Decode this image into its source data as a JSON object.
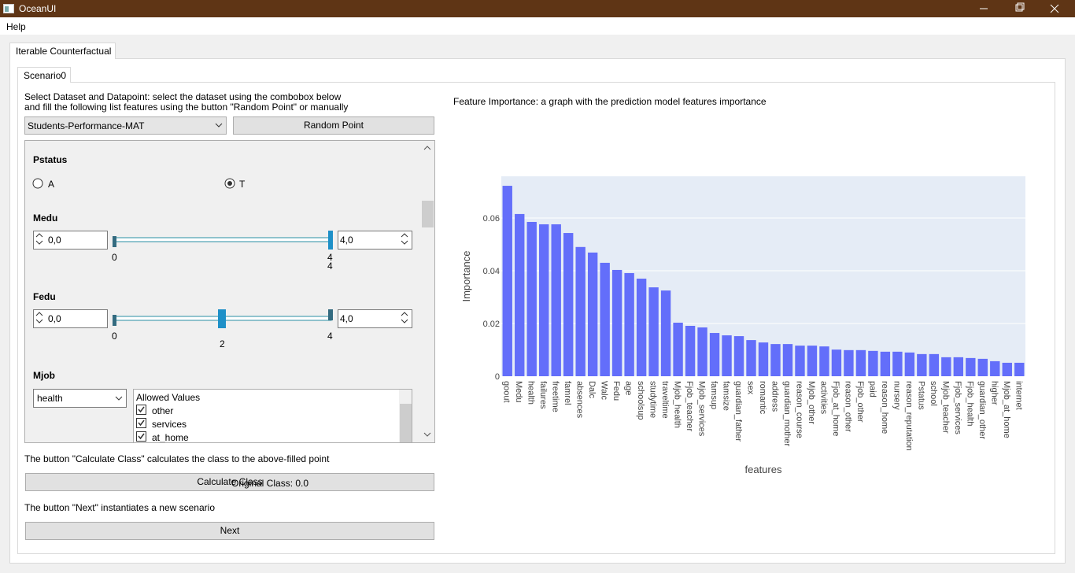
{
  "window": {
    "title": "OceanUI"
  },
  "menu": [
    "Help"
  ],
  "tabs": [
    "Iterable Counterfactual"
  ],
  "subtabs": [
    "Scenario0"
  ],
  "left": {
    "instructions": [
      "Select Dataset and Datapoint: select the dataset using the combobox below",
      "and fill the following list features using the button \"Random Point\" or manually"
    ],
    "dataset": "Students-Performance-MAT",
    "random_button": "Random Point",
    "pstatus": {
      "label": "Pstatus",
      "options": [
        "A",
        "T"
      ]
    },
    "medu": {
      "label": "Medu",
      "min": "0,0",
      "max": "4,0",
      "slider_labels": [
        "0",
        "4",
        "4"
      ]
    },
    "fedu": {
      "label": "Fedu",
      "min": "0,0",
      "max": "4,0",
      "slider_labels": [
        "0",
        "2",
        "4"
      ]
    },
    "mjob": {
      "label": "Mjob",
      "value": "health",
      "list_header": "Allowed Values",
      "items": [
        "other",
        "services",
        "at_home"
      ]
    },
    "calc_text": "The button \"Calculate Class\" calculates the class to the above-filled point",
    "calc_button": "Calculate Class",
    "original_class": "Original Class: 0.0",
    "next_text": "The button \"Next\" instantiates a new scenario",
    "next_button": "Next"
  },
  "chart_data": {
    "type": "bar",
    "title": "Feature Importance: a graph with the prediction model features importance",
    "x_label": "features",
    "y_label": "Importance",
    "color": "#636efa",
    "categories": [
      "goout",
      "Medu",
      "health",
      "failures",
      "freetime",
      "famrel",
      "absences",
      "Dalc",
      "Walc",
      "Fedu",
      "age",
      "schoolsup",
      "studytime",
      "traveltime",
      "Mjob_health",
      "Fjob_teacher",
      "Mjob_services",
      "famsup",
      "famsize",
      "guardian_father",
      "sex",
      "romantic",
      "address",
      "guardian_mother",
      "reason_course",
      "Mjob_other",
      "activities",
      "Fjob_at_home",
      "reason_other",
      "Fjob_other",
      "paid",
      "reason_home",
      "nursery",
      "reason_reputation",
      "Pstatus",
      "school",
      "Mjob_teacher",
      "Fjob_services",
      "Fjob_health",
      "guardian_other",
      "higher",
      "Mjob_at_home",
      "internet"
    ],
    "values": [
      0.0722,
      0.0615,
      0.0585,
      0.0576,
      0.0576,
      0.0543,
      0.049,
      0.0469,
      0.043,
      0.0403,
      0.0391,
      0.037,
      0.0337,
      0.0325,
      0.0203,
      0.0191,
      0.0185,
      0.0164,
      0.0155,
      0.0152,
      0.0137,
      0.0128,
      0.0122,
      0.0122,
      0.0116,
      0.0116,
      0.0113,
      0.0101,
      0.0099,
      0.0099,
      0.0096,
      0.0093,
      0.0093,
      0.009,
      0.0084,
      0.0084,
      0.0072,
      0.0072,
      0.0069,
      0.0066,
      0.0057,
      0.0051,
      0.0051
    ],
    "ylim": [
      0,
      0.0758
    ],
    "yticks": [
      0,
      0.02,
      0.04,
      0.06
    ],
    "grid": true
  }
}
